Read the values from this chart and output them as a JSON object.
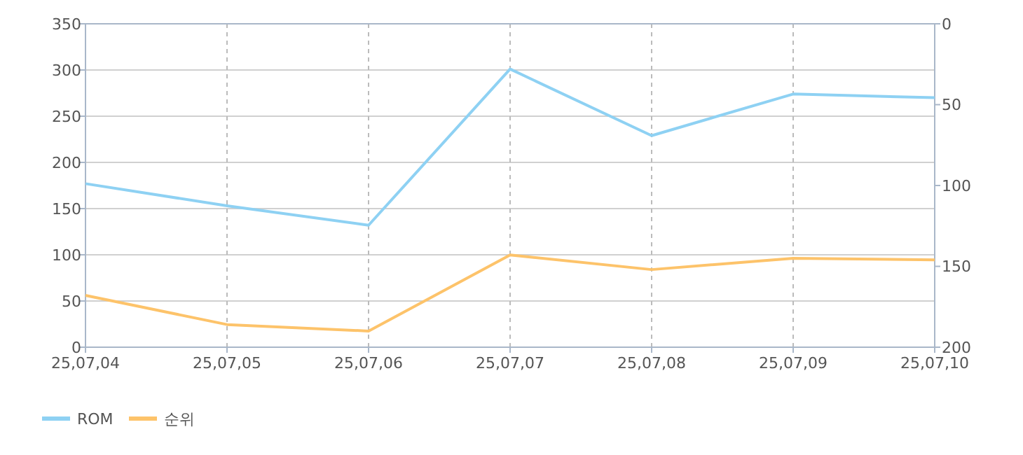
{
  "chart_data": {
    "type": "line",
    "categories": [
      "25,07,04",
      "25,07,05",
      "25,07,06",
      "25,07,07",
      "25,07,08",
      "25,07,09",
      "25,07,10"
    ],
    "series": [
      {
        "name": "ROM",
        "color": "#8ed1f3",
        "values": [
          177,
          153,
          132,
          301,
          229,
          274,
          270
        ]
      },
      {
        "name": "순위",
        "color": "#fdc36a",
        "axis": "y2",
        "values": [
          168,
          186,
          190,
          143,
          152,
          145,
          146
        ]
      }
    ],
    "ylim": [
      0,
      350
    ],
    "yticks": [
      0,
      50,
      100,
      150,
      200,
      250,
      300,
      350
    ],
    "y2lim": [
      200,
      0
    ],
    "y2ticks": [
      0,
      50,
      100,
      150,
      200
    ],
    "grid": true,
    "legend": "bottom left",
    "marker": "none",
    "line_style": "solid"
  }
}
